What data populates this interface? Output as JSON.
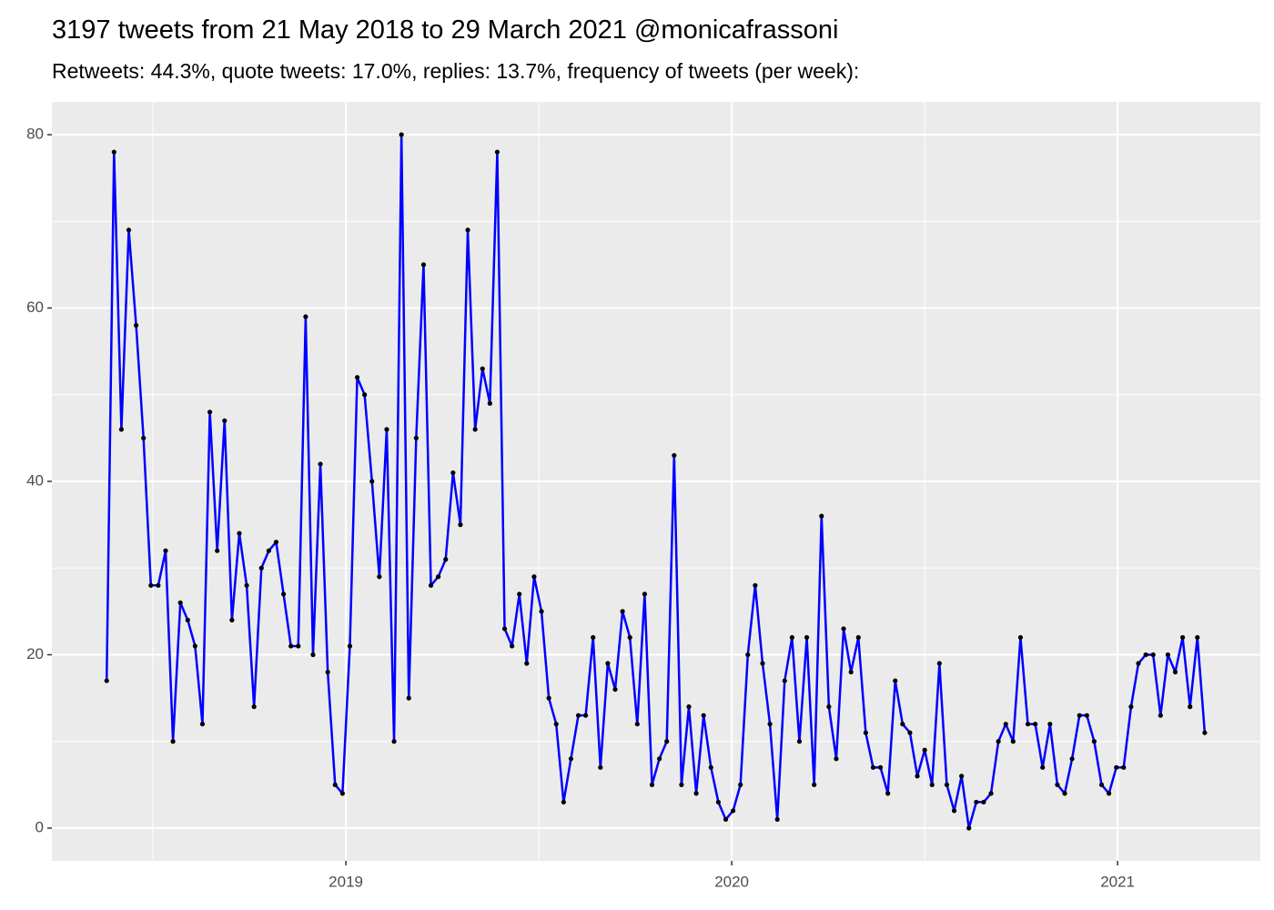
{
  "chart_data": {
    "type": "line",
    "title": "3197 tweets from 21 May 2018 to 29 March 2021 @monicafrassoni",
    "subtitle": "Retweets: 44.3%, quote tweets: 17.0%, replies: 13.7%, frequency of tweets (per week):",
    "x": [
      2018.38,
      2018.3991,
      2018.4182,
      2018.4373,
      2018.4564,
      2018.4755,
      2018.4946,
      2018.5137,
      2018.5328,
      2018.5519,
      2018.571,
      2018.5901,
      2018.6092,
      2018.6283,
      2018.6474,
      2018.6665,
      2018.6856,
      2018.7047,
      2018.7238,
      2018.7429,
      2018.762,
      2018.7811,
      2018.8002,
      2018.8193,
      2018.8384,
      2018.8575,
      2018.8766,
      2018.8957,
      2018.9148,
      2018.9339,
      2018.953,
      2018.9721,
      2018.9912,
      2019.0103,
      2019.0294,
      2019.0485,
      2019.0676,
      2019.0867,
      2019.1058,
      2019.1249,
      2019.144,
      2019.1631,
      2019.1822,
      2019.2013,
      2019.2204,
      2019.2395,
      2019.2586,
      2019.2777,
      2019.2968,
      2019.3159,
      2019.335,
      2019.3541,
      2019.3732,
      2019.3923,
      2019.4114,
      2019.4305,
      2019.4496,
      2019.4687,
      2019.4878,
      2019.5069,
      2019.526,
      2019.5451,
      2019.5642,
      2019.5833,
      2019.6024,
      2019.6215,
      2019.6406,
      2019.6597,
      2019.6788,
      2019.6979,
      2019.717,
      2019.7361,
      2019.7552,
      2019.7743,
      2019.7934,
      2019.8125,
      2019.8316,
      2019.8507,
      2019.8698,
      2019.8889,
      2019.908,
      2019.9271,
      2019.9462,
      2019.9653,
      2019.9844,
      2020.0035,
      2020.0226,
      2020.0417,
      2020.0608,
      2020.0799,
      2020.099,
      2020.1181,
      2020.1372,
      2020.1563,
      2020.1754,
      2020.1945,
      2020.2136,
      2020.2327,
      2020.2518,
      2020.2709,
      2020.29,
      2020.3091,
      2020.3282,
      2020.3473,
      2020.3664,
      2020.3855,
      2020.4046,
      2020.4237,
      2020.4428,
      2020.4619,
      2020.481,
      2020.5001,
      2020.5192,
      2020.5383,
      2020.5574,
      2020.5765,
      2020.5956,
      2020.6147,
      2020.6338,
      2020.6529,
      2020.672,
      2020.6911,
      2020.7102,
      2020.7293,
      2020.7484,
      2020.7675,
      2020.7866,
      2020.8057,
      2020.8248,
      2020.8439,
      2020.863,
      2020.8821,
      2020.9012,
      2020.9203,
      2020.9394,
      2020.9585,
      2020.9776,
      2020.9967,
      2021.0158,
      2021.0349,
      2021.054,
      2021.0731,
      2021.0922,
      2021.1113,
      2021.1304,
      2021.1495,
      2021.1686,
      2021.1877,
      2021.2068,
      2021.2259
    ],
    "values": [
      17,
      78,
      46,
      69,
      58,
      45,
      28,
      28,
      32,
      10,
      26,
      24,
      21,
      12,
      48,
      32,
      47,
      24,
      34,
      28,
      14,
      30,
      32,
      33,
      27,
      21,
      21,
      59,
      20,
      42,
      18,
      5,
      4,
      21,
      52,
      50,
      40,
      29,
      46,
      10,
      80,
      15,
      45,
      65,
      28,
      29,
      31,
      41,
      35,
      69,
      46,
      53,
      49,
      78,
      23,
      21,
      27,
      19,
      29,
      25,
      15,
      12,
      3,
      8,
      13,
      13,
      22,
      7,
      19,
      16,
      25,
      22,
      12,
      27,
      5,
      8,
      10,
      43,
      5,
      14,
      4,
      13,
      7,
      3,
      1,
      2,
      5,
      20,
      28,
      19,
      12,
      1,
      17,
      22,
      10,
      22,
      5,
      36,
      14,
      8,
      23,
      18,
      22,
      11,
      7,
      7,
      4,
      17,
      12,
      11,
      6,
      9,
      5,
      19,
      5,
      2,
      6,
      0,
      3,
      3,
      4,
      10,
      12,
      10,
      22,
      12,
      12,
      7,
      12,
      5,
      4,
      8,
      13,
      13,
      10,
      5,
      4,
      7,
      7,
      14,
      19,
      20,
      20,
      13,
      20,
      18,
      22,
      14,
      22,
      11
    ],
    "color": "#0000ff",
    "point_color": "#000000",
    "xlim": [
      2018.238,
      2021.37
    ],
    "xticks": [
      2019,
      2020,
      2021
    ],
    "xminor": [
      2018.5,
      2019.5,
      2020.5
    ],
    "ylim": [
      -3.78,
      83.78
    ],
    "yticks": [
      0,
      20,
      40,
      60,
      80
    ],
    "yminor": [
      10,
      30,
      50,
      70
    ],
    "grid": true
  }
}
